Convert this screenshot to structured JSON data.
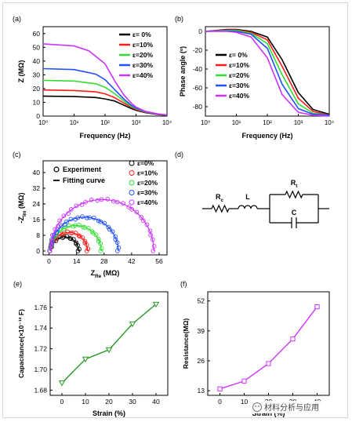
{
  "chart_data": [
    {
      "panel": "(a)",
      "type": "line",
      "xlabel": "Frequency (Hz)",
      "ylabel": "Z (MΩ)",
      "xscale": "log",
      "xlim": [
        1,
        10000
      ],
      "ylim": [
        0,
        65
      ],
      "xtick_labels": [
        "10⁰",
        "10¹",
        "10²",
        "10³",
        "10⁴"
      ],
      "ytick_labels": [
        "0",
        "10",
        "20",
        "30",
        "40",
        "50",
        "60"
      ],
      "legend_position": "top-right",
      "series": [
        {
          "name": "ε= 0%",
          "color": "#000000",
          "x": [
            1,
            10,
            50,
            100,
            200,
            400,
            700,
            1000,
            2000,
            5000,
            10000
          ],
          "y": [
            14.5,
            14.2,
            13.5,
            12.5,
            11.0,
            8.0,
            5.5,
            4.2,
            2.5,
            1.2,
            0.6
          ]
        },
        {
          "name": "ε=10%",
          "color": "#ff1a1a",
          "x": [
            1,
            10,
            50,
            100,
            200,
            400,
            700,
            1000,
            2000,
            5000,
            10000
          ],
          "y": [
            19.0,
            18.6,
            17.6,
            16.2,
            13.5,
            9.5,
            6.5,
            4.8,
            2.8,
            1.3,
            0.7
          ]
        },
        {
          "name": "ε=20%",
          "color": "#33dd33",
          "x": [
            1,
            10,
            50,
            100,
            200,
            400,
            700,
            1000,
            2000,
            5000,
            10000
          ],
          "y": [
            26.0,
            25.5,
            23.5,
            21.0,
            16.5,
            11.0,
            7.2,
            5.3,
            3.0,
            1.4,
            0.7
          ]
        },
        {
          "name": "ε=30%",
          "color": "#1f4fff",
          "x": [
            1,
            10,
            50,
            100,
            200,
            400,
            700,
            1000,
            2000,
            5000,
            10000
          ],
          "y": [
            34.5,
            33.8,
            30.5,
            26.5,
            19.5,
            12.5,
            8.0,
            5.8,
            3.2,
            1.5,
            0.8
          ]
        },
        {
          "name": "ε=40%",
          "color": "#cc33ff",
          "x": [
            1,
            10,
            30,
            100,
            200,
            400,
            700,
            1000,
            2000,
            5000,
            10000
          ],
          "y": [
            52.5,
            51.0,
            47.5,
            38.0,
            26.0,
            15.5,
            9.5,
            6.5,
            3.5,
            1.6,
            0.8
          ]
        }
      ]
    },
    {
      "panel": "(b)",
      "type": "line",
      "xlabel": "Frequency (Hz)",
      "ylabel": "Phase angle (º)",
      "xscale": "log",
      "xlim": [
        1,
        10000
      ],
      "ylim": [
        -90,
        5
      ],
      "xtick_labels": [
        "10⁰",
        "10¹",
        "10²",
        "10³",
        "10⁴"
      ],
      "ytick_labels": [
        "0",
        "-20",
        "-40",
        "-60",
        "-80"
      ],
      "legend_position": "left",
      "series": [
        {
          "name": "ε= 0%",
          "color": "#000000",
          "x": [
            1,
            5,
            10,
            30,
            100,
            300,
            1000,
            3000,
            10000
          ],
          "y": [
            0,
            2,
            2,
            0,
            -6,
            -30,
            -65,
            -83,
            -88
          ]
        },
        {
          "name": "ε=10%",
          "color": "#ff1a1a",
          "x": [
            1,
            5,
            10,
            30,
            100,
            300,
            1000,
            3000,
            10000
          ],
          "y": [
            0,
            1.5,
            1.5,
            -1,
            -9,
            -37,
            -71,
            -85,
            -89
          ]
        },
        {
          "name": "ε=20%",
          "color": "#33dd33",
          "x": [
            1,
            5,
            10,
            30,
            100,
            300,
            1000,
            3000,
            10000
          ],
          "y": [
            0,
            1,
            1,
            -2,
            -13,
            -46,
            -77,
            -87,
            -89
          ]
        },
        {
          "name": "ε=30%",
          "color": "#1f4fff",
          "x": [
            1,
            5,
            10,
            30,
            100,
            300,
            1000,
            3000,
            10000
          ],
          "y": [
            0,
            0.5,
            0,
            -3,
            -18,
            -56,
            -82,
            -88,
            -89
          ]
        },
        {
          "name": "ε=40%",
          "color": "#cc33ff",
          "x": [
            1,
            5,
            10,
            30,
            100,
            300,
            1000,
            3000,
            10000
          ],
          "y": [
            0,
            0,
            -1,
            -6,
            -28,
            -67,
            -86,
            -89,
            -90
          ]
        }
      ]
    },
    {
      "panel": "(c)",
      "type": "scatter",
      "xlabel": "Z",
      "xlabel_sub": "Re",
      "xlabel_unit": " (MΩ)",
      "ylabel": "-Z",
      "ylabel_sub": "Im",
      "ylabel_unit": " (MΩ)",
      "xlim": [
        -3,
        60
      ],
      "ylim": [
        -2,
        46
      ],
      "xtick_labels": [
        "0",
        "14",
        "28",
        "42",
        "56"
      ],
      "ytick_labels": [
        "0",
        "8",
        "16",
        "24",
        "32",
        "40"
      ],
      "legend_markers": [
        "Experiment",
        "Fitting curve"
      ],
      "series": [
        {
          "name": "ε=0%",
          "color": "#000000",
          "diameter": 14.5,
          "r_series": 0.6
        },
        {
          "name": "ε=10%",
          "color": "#ff1a1a",
          "diameter": 19.0,
          "r_series": 0.6
        },
        {
          "name": "ε=20%",
          "color": "#33dd33",
          "diameter": 26.0,
          "r_series": 0.6
        },
        {
          "name": "ε=30%",
          "color": "#1f4fff",
          "diameter": 34.5,
          "r_series": 0.7
        },
        {
          "name": "ε=40%",
          "color": "#cc33ff",
          "diameter": 52.5,
          "r_series": 0.8
        }
      ]
    },
    {
      "panel": "(d)",
      "type": "diagram",
      "labels": {
        "rc": "R",
        "rc_sub": "c",
        "l": "L",
        "rt": "R",
        "rt_sub": "t",
        "c": "C"
      }
    },
    {
      "panel": "(e)",
      "type": "line",
      "xlabel": "Strain (%)",
      "ylabel": "Capacitance(×10⁻¹² F)",
      "color": "#229922",
      "marker": "triangle-down",
      "categories": [
        0,
        10,
        20,
        30,
        40
      ],
      "values": [
        1.687,
        1.71,
        1.719,
        1.744,
        1.763
      ],
      "ylim": [
        1.675,
        1.775
      ],
      "xtick_labels": [
        "0",
        "10",
        "20",
        "30",
        "40"
      ],
      "ytick_labels": [
        "1.68",
        "1.70",
        "1.72",
        "1.74",
        "1.76"
      ]
    },
    {
      "panel": "(f)",
      "type": "line",
      "xlabel": "Strain (%)",
      "ylabel": "Resistance(MΩ)",
      "color": "#cc33ff",
      "marker": "square",
      "categories": [
        0,
        10,
        20,
        30,
        40
      ],
      "values": [
        13.8,
        17.2,
        24.8,
        35.5,
        49.5
      ],
      "ylim": [
        11,
        56
      ],
      "xtick_labels": [
        "0",
        "10",
        "20",
        "30",
        "40"
      ],
      "ytick_labels": [
        "13",
        "26",
        "39",
        "52"
      ]
    }
  ],
  "watermark": "材料分析与应用"
}
